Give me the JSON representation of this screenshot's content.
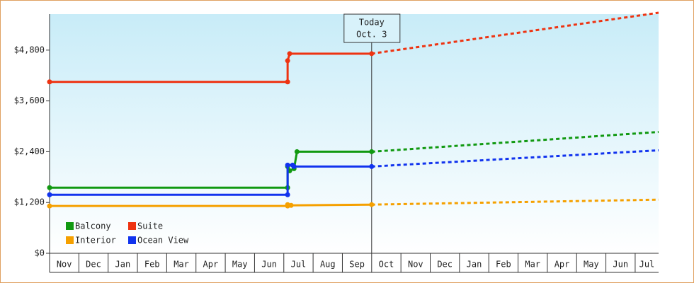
{
  "chart_data": {
    "type": "line",
    "ylim": [
      0,
      5650
    ],
    "yticks": [
      {
        "value": 0,
        "label": "$0"
      },
      {
        "value": 1200,
        "label": "$1,200"
      },
      {
        "value": 2400,
        "label": "$2,400"
      },
      {
        "value": 3600,
        "label": "$3,600"
      },
      {
        "value": 4800,
        "label": "$4,800"
      }
    ],
    "xlim": [
      0,
      20.8
    ],
    "xticks": [
      {
        "value": 0,
        "label": "Nov"
      },
      {
        "value": 1,
        "label": "Dec"
      },
      {
        "value": 2,
        "label": "Jan"
      },
      {
        "value": 3,
        "label": "Feb"
      },
      {
        "value": 4,
        "label": "Mar"
      },
      {
        "value": 5,
        "label": "Apr"
      },
      {
        "value": 6,
        "label": "May"
      },
      {
        "value": 7,
        "label": "Jun"
      },
      {
        "value": 8,
        "label": "Jul"
      },
      {
        "value": 9,
        "label": "Aug"
      },
      {
        "value": 10,
        "label": "Sep"
      },
      {
        "value": 11,
        "label": "Oct"
      },
      {
        "value": 12,
        "label": "Nov"
      },
      {
        "value": 13,
        "label": "Dec"
      },
      {
        "value": 14,
        "label": "Jan"
      },
      {
        "value": 15,
        "label": "Feb"
      },
      {
        "value": 16,
        "label": "Mar"
      },
      {
        "value": 17,
        "label": "Apr"
      },
      {
        "value": 18,
        "label": "May"
      },
      {
        "value": 19,
        "label": "Jun"
      },
      {
        "value": 20,
        "label": "Jul"
      }
    ],
    "annotation": {
      "x": 11.0,
      "lines": [
        "Today",
        "Oct. 3"
      ]
    },
    "series": [
      {
        "name": "Balcony",
        "color": "#119911",
        "x": [
          0,
          8.13,
          8.13,
          8.2,
          8.35,
          8.45,
          11.0
        ],
        "values": [
          1550,
          1550,
          2050,
          1950,
          2000,
          2400,
          2400
        ],
        "forecast": {
          "x": [
            11.0,
            20.8
          ],
          "values": [
            2400,
            2867
          ]
        }
      },
      {
        "name": "Suite",
        "color": "#ee3311",
        "x": [
          0,
          8.13,
          8.13,
          8.2,
          11.0
        ],
        "values": [
          4050,
          4050,
          4550,
          4717,
          4717
        ],
        "forecast": {
          "x": [
            11.0,
            20.8
          ],
          "values": [
            4717,
            5683
          ]
        }
      },
      {
        "name": "Interior",
        "color": "#f5a000",
        "x": [
          0,
          8.13,
          8.13,
          8.25,
          11.0
        ],
        "values": [
          1117,
          1117,
          1150,
          1133,
          1150
        ],
        "forecast": {
          "x": [
            11.0,
            20.8
          ],
          "values": [
            1150,
            1267
          ]
        }
      },
      {
        "name": "Ocean View",
        "color": "#1133ee",
        "x": [
          0,
          8.13,
          8.13,
          8.3,
          8.35,
          11.0
        ],
        "values": [
          1383,
          1383,
          2083,
          2083,
          2050,
          2050
        ],
        "forecast": {
          "x": [
            11.0,
            20.8
          ],
          "values": [
            2050,
            2433
          ]
        }
      }
    ]
  }
}
